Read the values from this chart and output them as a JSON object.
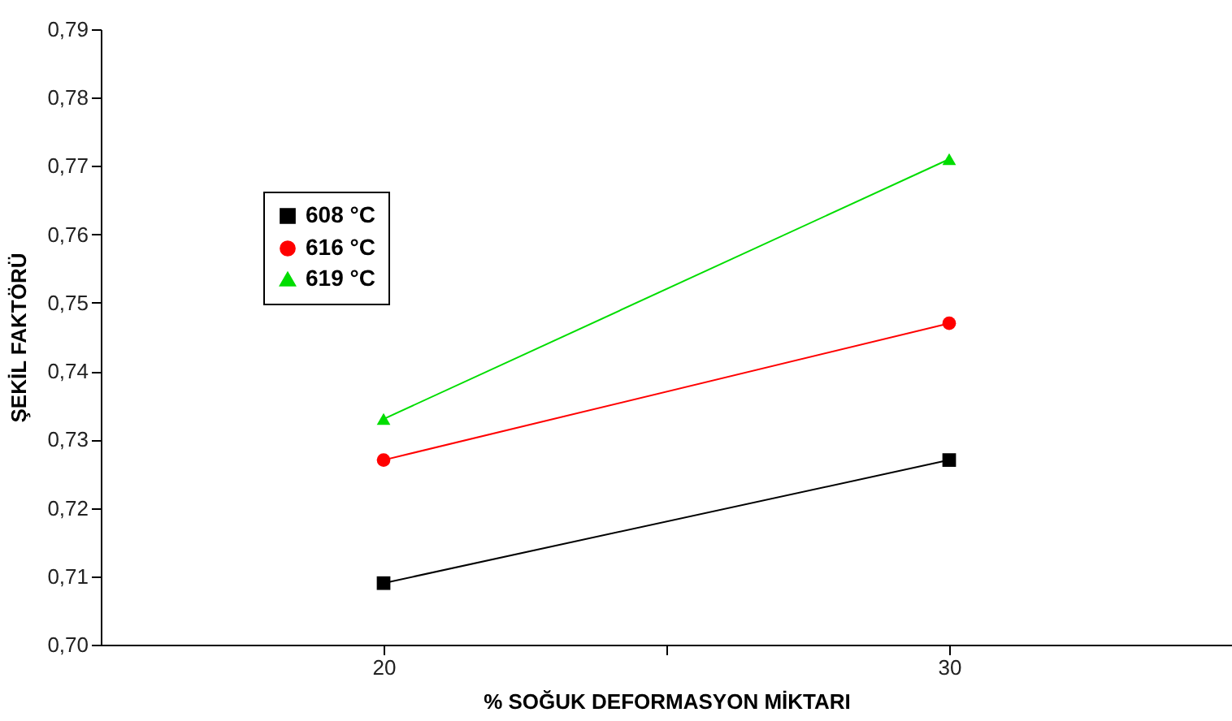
{
  "chart_data": {
    "type": "line",
    "xlabel": "% SOĞUK DEFORMASYON MİKTARI",
    "ylabel": "ŞEKİL FAKTÖRÜ",
    "x": [
      20,
      30
    ],
    "series": [
      {
        "name": "608 °C",
        "color": "#000000",
        "marker": "square",
        "values": [
          0.709,
          0.727
        ]
      },
      {
        "name": "616 °C",
        "color": "#ff0000",
        "marker": "circle",
        "values": [
          0.727,
          0.747
        ]
      },
      {
        "name": "619 °C",
        "color": "#00dd00",
        "marker": "triangle",
        "values": [
          0.733,
          0.771
        ]
      }
    ],
    "xlim": [
      15,
      35
    ],
    "xticks": [
      20,
      {
        "value": 25,
        "label": null
      },
      30
    ],
    "ylim": [
      0.7,
      0.79
    ],
    "yticks": [
      {
        "value": 0.7,
        "label": "0,70"
      },
      {
        "value": 0.71,
        "label": "0,71"
      },
      {
        "value": 0.72,
        "label": "0,72"
      },
      {
        "value": 0.73,
        "label": "0,73"
      },
      {
        "value": 0.74,
        "label": "0,74"
      },
      {
        "value": 0.75,
        "label": "0,75"
      },
      {
        "value": 0.76,
        "label": "0,76"
      },
      {
        "value": 0.77,
        "label": "0,77"
      },
      {
        "value": 0.78,
        "label": "0,78"
      },
      {
        "value": 0.79,
        "label": "0,79"
      }
    ],
    "grid": false,
    "legend": "top left",
    "line_style": "solid"
  }
}
